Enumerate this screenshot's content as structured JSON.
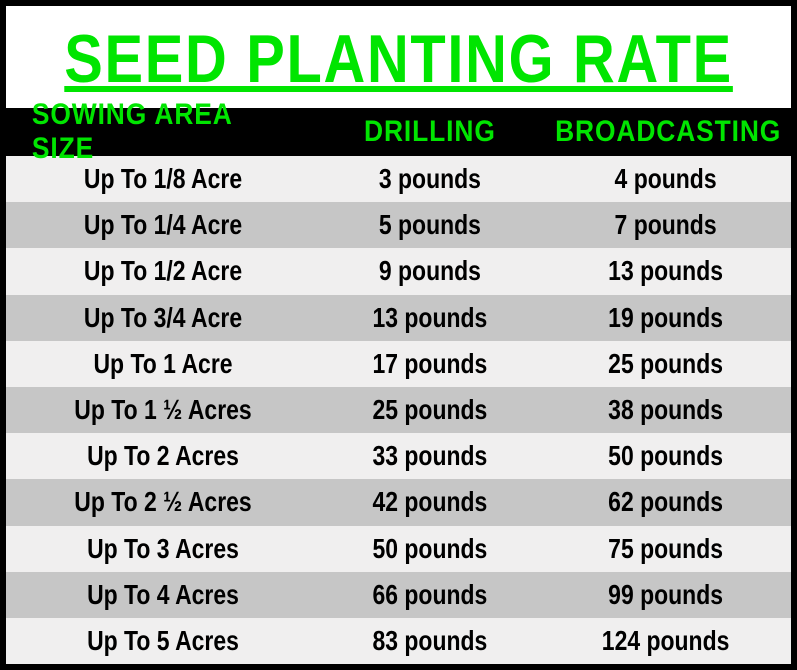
{
  "title": "SEED PLANTING RATE",
  "colors": {
    "accent": "#00e500",
    "header_bg": "#000000",
    "border": "#000000",
    "stripe_light": "#f0efef",
    "stripe_dark": "#c6c6c6",
    "text": "#000000"
  },
  "typography": {
    "title_fontsize": 68,
    "header_fontsize": 30,
    "body_fontsize": 28,
    "font_family": "Arial Black / condensed"
  },
  "table": {
    "columns": [
      "SOWING AREA SIZE",
      "DRILLING",
      "BROADCASTING"
    ],
    "column_widths_pct": [
      40,
      28,
      32
    ],
    "rows": [
      {
        "area": "Up To 1/8 Acre",
        "drilling": "3 pounds",
        "broadcasting": "4 pounds"
      },
      {
        "area": "Up To 1/4 Acre",
        "drilling": "5 pounds",
        "broadcasting": "7 pounds"
      },
      {
        "area": "Up To 1/2 Acre",
        "drilling": "9 pounds",
        "broadcasting": "13 pounds"
      },
      {
        "area": "Up To 3/4 Acre",
        "drilling": "13 pounds",
        "broadcasting": "19 pounds"
      },
      {
        "area": "Up To 1 Acre",
        "drilling": "17 pounds",
        "broadcasting": "25 pounds"
      },
      {
        "area": "Up To 1 ½ Acres",
        "drilling": "25 pounds",
        "broadcasting": "38 pounds"
      },
      {
        "area": "Up To 2 Acres",
        "drilling": "33 pounds",
        "broadcasting": "50 pounds"
      },
      {
        "area": "Up To 2 ½ Acres",
        "drilling": "42 pounds",
        "broadcasting": "62 pounds"
      },
      {
        "area": "Up To 3 Acres",
        "drilling": "50 pounds",
        "broadcasting": "75 pounds"
      },
      {
        "area": "Up To 4 Acres",
        "drilling": "66 pounds",
        "broadcasting": "99 pounds"
      },
      {
        "area": "Up To 5 Acres",
        "drilling": "83 pounds",
        "broadcasting": "124 pounds"
      }
    ]
  }
}
